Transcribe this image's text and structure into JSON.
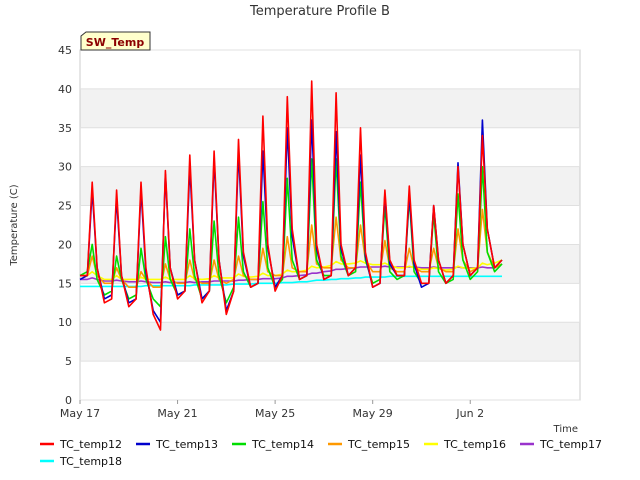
{
  "chart_data": {
    "type": "line",
    "title": "Temperature Profile B",
    "xlabel": "Time",
    "ylabel": "Temperature (C)",
    "station_tag": "SW_Temp",
    "ylim": [
      0,
      45
    ],
    "yticks": [
      0,
      5,
      10,
      15,
      20,
      25,
      30,
      35,
      40,
      45
    ],
    "xlim": [
      0,
      20.5
    ],
    "xticks": [
      {
        "day": 0,
        "label": "May 17"
      },
      {
        "day": 4,
        "label": "May 21"
      },
      {
        "day": 8,
        "label": "May 25"
      },
      {
        "day": 12,
        "label": "May 29"
      },
      {
        "day": 16,
        "label": "Jun 2"
      }
    ],
    "grid": "horizontal-bands",
    "legend": "bottom",
    "x_days": [
      0,
      0.3,
      0.5,
      0.7,
      1,
      1.3,
      1.5,
      1.7,
      2,
      2.3,
      2.5,
      2.7,
      3,
      3.3,
      3.5,
      3.7,
      4,
      4.3,
      4.5,
      4.7,
      5,
      5.3,
      5.5,
      5.7,
      6,
      6.3,
      6.5,
      6.7,
      7,
      7.3,
      7.5,
      7.7,
      8,
      8.3,
      8.5,
      8.7,
      9,
      9.3,
      9.5,
      9.7,
      10,
      10.3,
      10.5,
      10.7,
      11,
      11.3,
      11.5,
      11.7,
      12,
      12.3,
      12.5,
      12.7,
      13,
      13.3,
      13.5,
      13.7,
      14,
      14.3,
      14.5,
      14.7,
      15,
      15.3,
      15.5,
      15.7,
      16,
      16.3,
      16.5,
      16.7,
      17,
      17.3
    ],
    "series": [
      {
        "name": "TC_temp12",
        "color": "#ff0000",
        "values": [
          16,
          16,
          28,
          17,
          12.5,
          13,
          27,
          16,
          12,
          13,
          28,
          17,
          11,
          9,
          29.5,
          17,
          13,
          14,
          31.5,
          18,
          12.5,
          14,
          32,
          18,
          11,
          14,
          33.5,
          19,
          14.5,
          15,
          36.5,
          20,
          14,
          16,
          39,
          22,
          15.5,
          16,
          41,
          20,
          15.5,
          16,
          39.5,
          20,
          16,
          17,
          35,
          19,
          14.5,
          15,
          27,
          18,
          16,
          16,
          27.5,
          18,
          15,
          15,
          25,
          18,
          15,
          16,
          30,
          20,
          16,
          17,
          34,
          22,
          17,
          18
        ]
      },
      {
        "name": "TC_temp13",
        "color": "#0000cc",
        "values": [
          15.5,
          16,
          27,
          17,
          13,
          13.5,
          26,
          16,
          12.5,
          13,
          27,
          16.5,
          11.5,
          10,
          29,
          17,
          13.5,
          14,
          30,
          18,
          13,
          14,
          31,
          18,
          11.5,
          14,
          32,
          18.5,
          14.5,
          15,
          32,
          19.5,
          14.5,
          16,
          35,
          21,
          15.5,
          16,
          36,
          19.5,
          15.5,
          16,
          34.5,
          19.5,
          16,
          17,
          31.5,
          18.5,
          14.5,
          15,
          26.5,
          17.5,
          16,
          16,
          26.5,
          17.5,
          14.5,
          15,
          25,
          18,
          15,
          16,
          30.5,
          20,
          16,
          17,
          36,
          22,
          17,
          18
        ]
      },
      {
        "name": "TC_temp14",
        "color": "#00dd00",
        "values": [
          16,
          16.5,
          20,
          15.5,
          13.5,
          14,
          18.5,
          15.5,
          13,
          13.5,
          19.5,
          15.5,
          13,
          12,
          21,
          15.5,
          13.5,
          14,
          22,
          16,
          13,
          14,
          23,
          16,
          12.5,
          14.5,
          23.5,
          16.5,
          14.5,
          15,
          25.5,
          17,
          14.5,
          15.5,
          28.5,
          18,
          15.5,
          16,
          31,
          18,
          16,
          16,
          31,
          18.5,
          16,
          16.5,
          28,
          18,
          15,
          15.5,
          25,
          16.5,
          15.5,
          16,
          26,
          16.5,
          15,
          15,
          24,
          16.5,
          15,
          15.5,
          26.5,
          18,
          15.5,
          16.5,
          30,
          19,
          16.5,
          17.5
        ]
      },
      {
        "name": "TC_temp15",
        "color": "#ff9900",
        "values": [
          16,
          16,
          18.5,
          16,
          15,
          15,
          17,
          15.5,
          14.5,
          14.5,
          16.5,
          15.5,
          14.5,
          14.5,
          17.5,
          15.5,
          15,
          15,
          18,
          15.5,
          15,
          15,
          18,
          15.5,
          15,
          15.5,
          18.5,
          16,
          15.5,
          15.5,
          19.5,
          16.5,
          16,
          16,
          21,
          17,
          16.5,
          16.5,
          22.5,
          17.5,
          17,
          17,
          23.5,
          18,
          17,
          17,
          22.5,
          18,
          16.5,
          16.5,
          20.5,
          17,
          16.5,
          16.5,
          19.5,
          17,
          16.5,
          16.5,
          19.5,
          17,
          16.5,
          16.5,
          22,
          18,
          16.5,
          17,
          24.5,
          19,
          17,
          17.5
        ]
      },
      {
        "name": "TC_temp16",
        "color": "#ffff00",
        "values": [
          16,
          16,
          16.5,
          16,
          15.5,
          15.5,
          16,
          15.5,
          15.5,
          15.5,
          15.8,
          15.5,
          15.5,
          15.5,
          15.8,
          15.5,
          15.5,
          15.5,
          16,
          15.6,
          15.5,
          15.6,
          16,
          15.7,
          15.7,
          15.7,
          16.2,
          15.9,
          15.8,
          15.9,
          16.3,
          16,
          16,
          16.2,
          16.7,
          16.5,
          16.5,
          16.7,
          17.2,
          17,
          17.1,
          17.3,
          17.8,
          17.5,
          17.5,
          17.6,
          17.9,
          17.6,
          17.4,
          17.4,
          17.6,
          17.3,
          17,
          17,
          17.2,
          17,
          16.8,
          16.8,
          17,
          16.9,
          16.7,
          16.8,
          17.2,
          17,
          16.9,
          17,
          17.6,
          17.4,
          17.6,
          18
        ]
      },
      {
        "name": "TC_temp17",
        "color": "#9933cc",
        "values": [
          15.5,
          15.5,
          15.7,
          15.5,
          15.3,
          15.3,
          15.4,
          15.3,
          15.2,
          15.2,
          15.3,
          15.2,
          15.1,
          15.1,
          15.2,
          15.1,
          15.1,
          15.1,
          15.2,
          15.1,
          15.2,
          15.2,
          15.3,
          15.3,
          15.3,
          15.3,
          15.4,
          15.4,
          15.5,
          15.5,
          15.6,
          15.6,
          15.6,
          15.7,
          15.9,
          15.9,
          16,
          16.1,
          16.3,
          16.3,
          16.5,
          16.6,
          16.8,
          16.8,
          16.9,
          17,
          17.1,
          17.1,
          17.1,
          17.1,
          17.2,
          17.1,
          17.1,
          17.1,
          17.1,
          17.1,
          17,
          17,
          17.1,
          17,
          17,
          17,
          17.1,
          17,
          17,
          17,
          17.1,
          17,
          17,
          17.5
        ]
      },
      {
        "name": "TC_temp18",
        "color": "#00ffff",
        "values": [
          14.6,
          14.6,
          14.6,
          14.6,
          14.6,
          14.6,
          14.6,
          14.6,
          14.6,
          14.6,
          14.6,
          14.7,
          14.7,
          14.7,
          14.7,
          14.7,
          14.7,
          14.7,
          14.7,
          14.8,
          14.8,
          14.8,
          14.8,
          14.8,
          14.8,
          14.9,
          14.9,
          14.9,
          14.9,
          15,
          15,
          15,
          15,
          15.1,
          15.1,
          15.1,
          15.2,
          15.2,
          15.3,
          15.4,
          15.4,
          15.5,
          15.5,
          15.6,
          15.6,
          15.7,
          15.7,
          15.8,
          15.8,
          15.8,
          15.8,
          15.9,
          15.9,
          15.9,
          15.9,
          15.9,
          15.9,
          15.9,
          15.9,
          15.9,
          15.9,
          15.9,
          15.9,
          15.9,
          15.9,
          15.9,
          15.9,
          15.9,
          15.9,
          15.9
        ]
      }
    ]
  }
}
